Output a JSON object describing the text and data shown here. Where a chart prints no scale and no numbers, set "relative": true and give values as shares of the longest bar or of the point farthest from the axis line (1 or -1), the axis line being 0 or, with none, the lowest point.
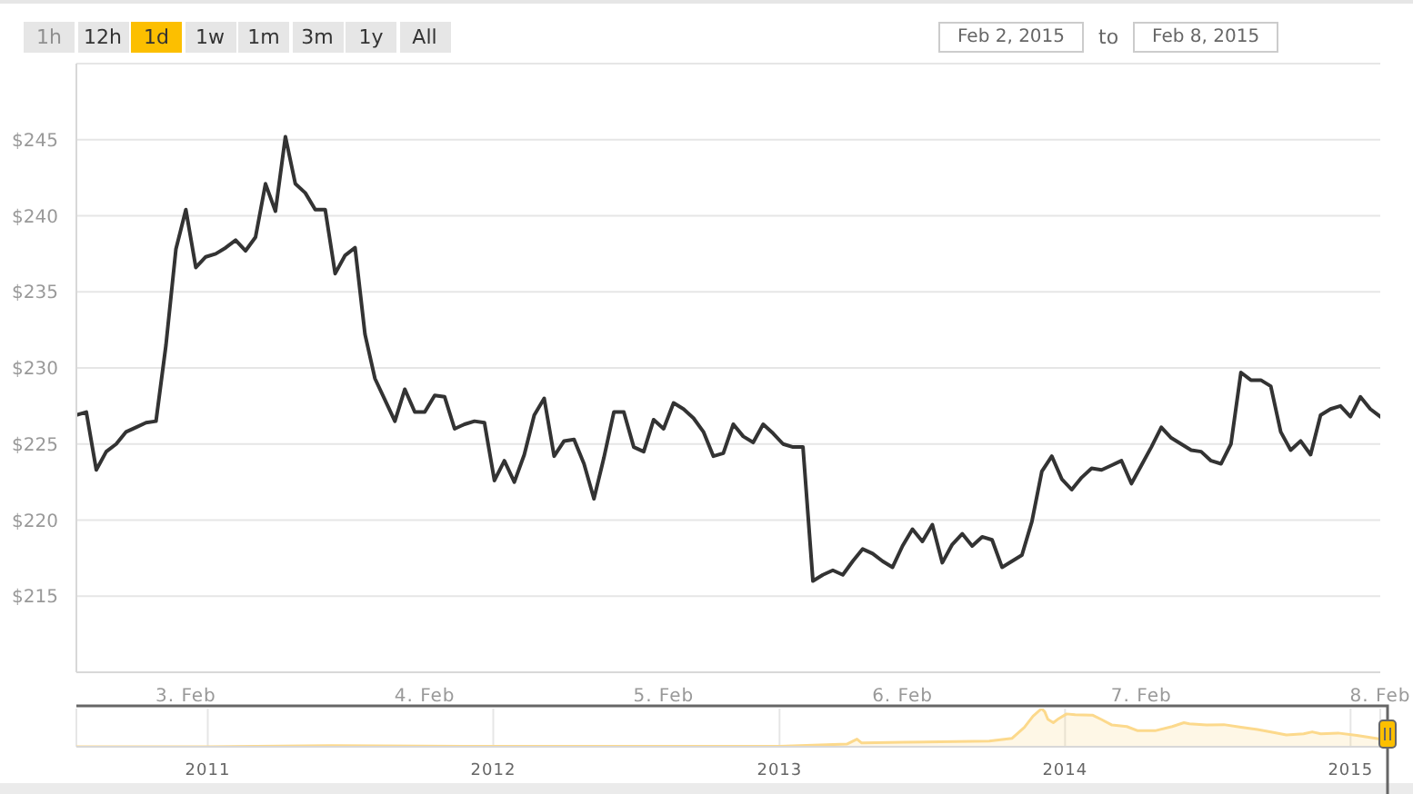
{
  "chart_data": [
    {
      "type": "other",
      "annotations": [
        "1h",
        "12h",
        "1d",
        "1w",
        "1m",
        "3m",
        "1y",
        "All",
        "Feb 2, 2015",
        "to",
        "Feb 8, 2015"
      ]
    },
    {
      "type": "line",
      "color": "#333333",
      "marker": "none",
      "grid": "y",
      "x": [
        "2015-02-02T13:00",
        "2015-02-02T14:00",
        "2015-02-02T15:00",
        "2015-02-02T16:00",
        "2015-02-02T17:00",
        "2015-02-02T18:00",
        "2015-02-02T19:00",
        "2015-02-02T20:00",
        "2015-02-02T21:00",
        "2015-02-02T22:00",
        "2015-02-02T23:00",
        "2015-02-03T00:00",
        "2015-02-03T01:00",
        "2015-02-03T02:00",
        "2015-02-03T03:00",
        "2015-02-03T04:00",
        "2015-02-03T05:00",
        "2015-02-03T06:00",
        "2015-02-03T07:00",
        "2015-02-03T08:00",
        "2015-02-03T09:00",
        "2015-02-03T10:00",
        "2015-02-03T11:00",
        "2015-02-03T12:00",
        "2015-02-03T13:00",
        "2015-02-03T14:00",
        "2015-02-03T15:00",
        "2015-02-03T16:00",
        "2015-02-03T17:00",
        "2015-02-03T18:00",
        "2015-02-03T19:00",
        "2015-02-03T20:00",
        "2015-02-03T21:00",
        "2015-02-03T22:00",
        "2015-02-03T23:00",
        "2015-02-04T00:00",
        "2015-02-04T01:00",
        "2015-02-04T02:00",
        "2015-02-04T03:00",
        "2015-02-04T04:00",
        "2015-02-04T05:00",
        "2015-02-04T06:00",
        "2015-02-04T07:00",
        "2015-02-04T08:00",
        "2015-02-04T09:00",
        "2015-02-04T10:00",
        "2015-02-04T11:00",
        "2015-02-04T12:00",
        "2015-02-04T13:00",
        "2015-02-04T14:00",
        "2015-02-04T15:00",
        "2015-02-04T16:00",
        "2015-02-04T17:00",
        "2015-02-04T18:00",
        "2015-02-04T19:00",
        "2015-02-04T20:00",
        "2015-02-04T21:00",
        "2015-02-04T22:00",
        "2015-02-04T23:00",
        "2015-02-05T00:00",
        "2015-02-05T01:00",
        "2015-02-05T02:00",
        "2015-02-05T03:00",
        "2015-02-05T04:00",
        "2015-02-05T05:00",
        "2015-02-05T06:00",
        "2015-02-05T07:00",
        "2015-02-05T08:00",
        "2015-02-05T09:00",
        "2015-02-05T10:00",
        "2015-02-05T11:00",
        "2015-02-05T12:00",
        "2015-02-05T13:00",
        "2015-02-05T14:00",
        "2015-02-05T15:00",
        "2015-02-05T16:00",
        "2015-02-05T17:00",
        "2015-02-05T18:00",
        "2015-02-05T19:00",
        "2015-02-05T20:00",
        "2015-02-05T21:00",
        "2015-02-05T22:00",
        "2015-02-05T23:00",
        "2015-02-06T00:00",
        "2015-02-06T01:00",
        "2015-02-06T02:00",
        "2015-02-06T03:00",
        "2015-02-06T04:00",
        "2015-02-06T05:00",
        "2015-02-06T06:00",
        "2015-02-06T07:00",
        "2015-02-06T08:00",
        "2015-02-06T09:00",
        "2015-02-06T10:00",
        "2015-02-06T11:00",
        "2015-02-06T12:00",
        "2015-02-06T13:00",
        "2015-02-06T14:00",
        "2015-02-06T15:00",
        "2015-02-06T16:00",
        "2015-02-06T17:00",
        "2015-02-06T18:00",
        "2015-02-06T19:00",
        "2015-02-06T20:00",
        "2015-02-06T21:00",
        "2015-02-06T22:00",
        "2015-02-06T23:00",
        "2015-02-07T00:00",
        "2015-02-07T01:00",
        "2015-02-07T02:00",
        "2015-02-07T03:00",
        "2015-02-07T04:00",
        "2015-02-07T05:00",
        "2015-02-07T06:00",
        "2015-02-07T07:00",
        "2015-02-07T08:00",
        "2015-02-07T09:00",
        "2015-02-07T10:00",
        "2015-02-07T11:00",
        "2015-02-07T12:00",
        "2015-02-07T13:00",
        "2015-02-07T14:00",
        "2015-02-07T15:00",
        "2015-02-07T16:00",
        "2015-02-07T17:00",
        "2015-02-07T18:00",
        "2015-02-07T19:00",
        "2015-02-07T20:00",
        "2015-02-07T21:00",
        "2015-02-07T22:00",
        "2015-02-07T23:00",
        "2015-02-08T00:00"
      ],
      "values": [
        226.9,
        227.1,
        223.3,
        224.5,
        225.0,
        225.8,
        226.1,
        226.4,
        226.5,
        231.5,
        237.8,
        240.4,
        236.6,
        237.3,
        237.5,
        237.9,
        238.4,
        237.7,
        238.6,
        242.1,
        240.3,
        245.2,
        242.1,
        241.5,
        240.4,
        240.4,
        236.2,
        237.4,
        237.9,
        232.2,
        229.3,
        227.9,
        226.5,
        228.6,
        227.1,
        227.1,
        228.2,
        228.1,
        226.0,
        226.3,
        226.5,
        226.4,
        222.6,
        223.9,
        222.5,
        224.3,
        226.9,
        228.0,
        224.2,
        225.2,
        225.3,
        223.7,
        221.4,
        224.1,
        227.1,
        227.1,
        224.8,
        224.5,
        226.6,
        226.0,
        227.7,
        227.3,
        226.7,
        225.8,
        224.2,
        224.4,
        226.3,
        225.5,
        225.1,
        226.3,
        225.7,
        225.0,
        224.8,
        224.8,
        216.0,
        216.4,
        216.7,
        216.4,
        217.3,
        218.1,
        217.8,
        217.3,
        216.9,
        218.3,
        219.4,
        218.6,
        219.7,
        217.2,
        218.4,
        219.1,
        218.3,
        218.9,
        218.7,
        216.9,
        217.3,
        217.7,
        219.9,
        223.2,
        224.2,
        222.7,
        222.0,
        222.8,
        223.4,
        223.3,
        223.6,
        223.9,
        222.4,
        223.6,
        224.8,
        226.1,
        225.4,
        225.0,
        224.6,
        224.5,
        223.9,
        223.7,
        225.0,
        229.7,
        229.2,
        229.2,
        228.8,
        225.8,
        224.6,
        225.2,
        224.3,
        226.9,
        227.3,
        227.5,
        226.8,
        228.1,
        227.3,
        226.8
      ],
      "xlim": [
        "2015-02-02T13:00",
        "2015-02-08T00:00"
      ],
      "xticks": [
        {
          "value": "2015-02-03",
          "label": "3. Feb"
        },
        {
          "value": "2015-02-04",
          "label": "4. Feb"
        },
        {
          "value": "2015-02-05",
          "label": "5. Feb"
        },
        {
          "value": "2015-02-06",
          "label": "6. Feb"
        },
        {
          "value": "2015-02-07",
          "label": "7. Feb"
        },
        {
          "value": "2015-02-08",
          "label": "8. Feb"
        }
      ],
      "ylim": [
        210,
        250
      ],
      "yticks": [
        {
          "value": 215,
          "label": "$215"
        },
        {
          "value": 220,
          "label": "$220"
        },
        {
          "value": 225,
          "label": "$225"
        },
        {
          "value": 230,
          "label": "$230"
        },
        {
          "value": 235,
          "label": "$235"
        },
        {
          "value": 240,
          "label": "$240"
        },
        {
          "value": 245,
          "label": "$245"
        },
        {
          "value": 250,
          "label": null
        }
      ]
    },
    {
      "type": "area",
      "relative": true,
      "color": "#fcd98c",
      "grid": "x",
      "x": [
        "2010-07-17",
        "2011-01-01",
        "2011-06-08",
        "2012-01-01",
        "2012-08-15",
        "2013-01-01",
        "2013-03-28",
        "2013-04-10",
        "2013-04-16",
        "2013-06-09",
        "2013-09-26",
        "2013-10-25",
        "2013-11-10",
        "2013-11-21",
        "2013-12-02",
        "2013-12-06",
        "2013-12-10",
        "2013-12-17",
        "2013-12-24",
        "2014-01-03",
        "2014-01-14",
        "2014-02-05",
        "2014-02-16",
        "2014-03-02",
        "2014-03-21",
        "2014-04-04",
        "2014-04-26",
        "2014-05-18",
        "2014-06-02",
        "2014-06-09",
        "2014-07-01",
        "2014-07-23",
        "2014-08-14",
        "2014-09-04",
        "2014-09-26",
        "2014-10-11",
        "2014-11-02",
        "2014-11-13",
        "2014-11-24",
        "2014-12-16",
        "2015-01-09",
        "2015-01-24",
        "2015-02-08"
      ],
      "values": [
        0,
        0,
        0.03,
        0.01,
        0.01,
        0.01,
        0.07,
        0.2,
        0.1,
        0.12,
        0.15,
        0.22,
        0.51,
        0.8,
        1,
        0.92,
        0.72,
        0.63,
        0.74,
        0.86,
        0.84,
        0.83,
        0.72,
        0.57,
        0.53,
        0.42,
        0.42,
        0.53,
        0.63,
        0.6,
        0.57,
        0.58,
        0.51,
        0.45,
        0.37,
        0.31,
        0.34,
        0.39,
        0.34,
        0.36,
        0.3,
        0.25,
        0.2
      ],
      "xlim": [
        "2010-07-17",
        "2015-02-08"
      ],
      "xticks": [
        {
          "value": "2011",
          "label": "2011"
        },
        {
          "value": "2012",
          "label": "2012"
        },
        {
          "value": "2013",
          "label": "2013"
        },
        {
          "value": "2014",
          "label": "2014"
        },
        {
          "value": "2015",
          "label": "2015"
        }
      ]
    }
  ]
}
